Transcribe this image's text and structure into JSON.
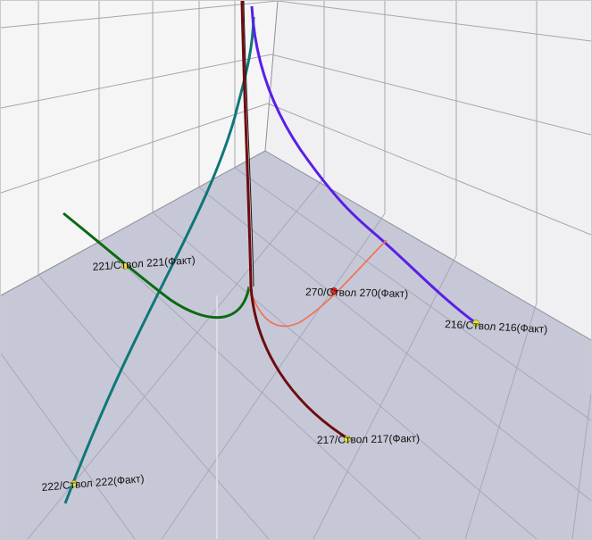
{
  "scene": {
    "colors": {
      "floor": "#c6c7d6",
      "wall": "#f4f4f5",
      "grid": "#9b9ba3",
      "marker_yellow": "#e8e23a",
      "marker_red": "#e02a20"
    },
    "wells": [
      {
        "id": "221",
        "label": "221/Ствол 221(Факт)",
        "color": "#0c6a12",
        "marker": "yellow-dot-icon"
      },
      {
        "id": "222",
        "label": "222/Ствол 222(Факт)",
        "color": "#0f7778",
        "marker": "yellow-dot-icon"
      },
      {
        "id": "217",
        "label": "217/Ствол 217(Факт)",
        "color": "#6d0c10",
        "marker": "yellow-dot-icon"
      },
      {
        "id": "270",
        "label": "270/Ствол 270(Факт)",
        "color": "#f0745a",
        "marker": "red-dot-icon"
      },
      {
        "id": "216",
        "label": "216/Ствол 216(Факт)",
        "color": "#5a1fe6",
        "marker": "yellow-dot-icon"
      }
    ]
  }
}
